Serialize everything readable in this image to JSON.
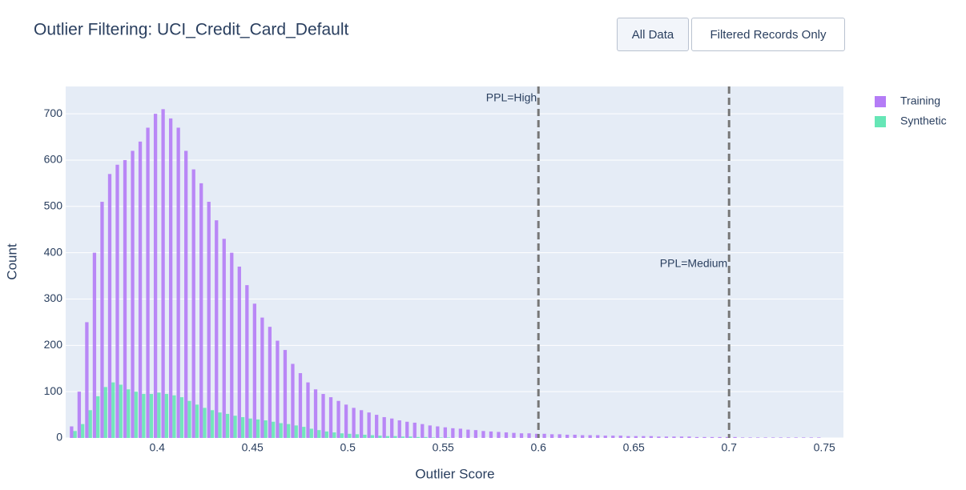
{
  "chart_data": {
    "type": "histogram",
    "title": "Outlier Filtering: UCI_Credit_Card_Default",
    "buttons": [
      "All Data",
      "Filtered Records Only"
    ],
    "x_label": "Outlier Score",
    "y_label": "Count",
    "bins": [
      0.354,
      0.358,
      0.362,
      0.366,
      0.37,
      0.374,
      0.378,
      0.382,
      0.386,
      0.39,
      0.394,
      0.398,
      0.402,
      0.406,
      0.41,
      0.414,
      0.418,
      0.422,
      0.426,
      0.43,
      0.434,
      0.438,
      0.442,
      0.446,
      0.45,
      0.454,
      0.458,
      0.462,
      0.466,
      0.47,
      0.474,
      0.478,
      0.482,
      0.486,
      0.49,
      0.494,
      0.498,
      0.502,
      0.506,
      0.51,
      0.514,
      0.518,
      0.522,
      0.526,
      0.53,
      0.534,
      0.538,
      0.542,
      0.546,
      0.55,
      0.554,
      0.558,
      0.562,
      0.566,
      0.57,
      0.574,
      0.578,
      0.582,
      0.586,
      0.59,
      0.594,
      0.598,
      0.602,
      0.606,
      0.61,
      0.614,
      0.618,
      0.622,
      0.626,
      0.63,
      0.634,
      0.638,
      0.642,
      0.646,
      0.65,
      0.654,
      0.658,
      0.662,
      0.666,
      0.67,
      0.674,
      0.678,
      0.682,
      0.686,
      0.69,
      0.694,
      0.698,
      0.702,
      0.706,
      0.71,
      0.714,
      0.718,
      0.722,
      0.726,
      0.73,
      0.734,
      0.738,
      0.742,
      0.746,
      0.75
    ],
    "series": [
      {
        "name": "Training",
        "color": "#b47cf6",
        "values": [
          25,
          100,
          250,
          400,
          510,
          570,
          590,
          600,
          620,
          640,
          670,
          700,
          710,
          690,
          670,
          620,
          580,
          550,
          510,
          470,
          430,
          400,
          370,
          330,
          290,
          260,
          240,
          210,
          190,
          160,
          140,
          120,
          105,
          95,
          88,
          80,
          72,
          65,
          60,
          55,
          50,
          45,
          42,
          38,
          35,
          33,
          30,
          27,
          25,
          23,
          21,
          20,
          18,
          17,
          15,
          14,
          13,
          12,
          11,
          10,
          10,
          9,
          9,
          8,
          8,
          7,
          7,
          6,
          6,
          6,
          5,
          5,
          5,
          4,
          4,
          4,
          4,
          3,
          3,
          3,
          3,
          3,
          2,
          2,
          2,
          2,
          2,
          2,
          1,
          1,
          1,
          1,
          1,
          1,
          1,
          1,
          1,
          1,
          1
        ]
      },
      {
        "name": "Synthetic",
        "color": "#66e6b6",
        "values": [
          15,
          30,
          60,
          90,
          110,
          120,
          115,
          105,
          100,
          95,
          95,
          98,
          95,
          92,
          88,
          80,
          72,
          65,
          60,
          55,
          52,
          48,
          45,
          42,
          40,
          38,
          35,
          32,
          30,
          27,
          24,
          20,
          17,
          14,
          12,
          10,
          9,
          8,
          7,
          6,
          5,
          4,
          4,
          3,
          3,
          2,
          2,
          1,
          1,
          1,
          0,
          0,
          0,
          0,
          0,
          0,
          0,
          0,
          0,
          0,
          0,
          0,
          0,
          0,
          0,
          0,
          0,
          0,
          0,
          0,
          0,
          0,
          0,
          0,
          0,
          0,
          0,
          0,
          0,
          0,
          0,
          0,
          0,
          0,
          0,
          0,
          0,
          0,
          0,
          0,
          0,
          0,
          0,
          0,
          0,
          0,
          0,
          0,
          0
        ]
      }
    ],
    "vlines": [
      {
        "x": 0.6,
        "label": "PPL=High"
      },
      {
        "x": 0.7,
        "label": "PPL=Medium"
      }
    ],
    "xlim": [
      0.352,
      0.76
    ],
    "xticks": [
      0.4,
      0.45,
      0.5,
      0.55,
      0.6,
      0.65,
      0.7,
      0.75
    ],
    "ylim": [
      0,
      759
    ],
    "yticks": [
      0,
      100,
      200,
      300,
      400,
      500,
      600,
      700
    ],
    "grid": true,
    "legend": "right"
  }
}
